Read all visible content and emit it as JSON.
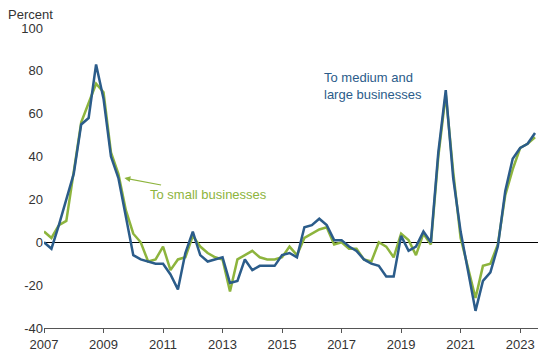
{
  "chart_data": {
    "type": "line",
    "y_label": "Percent",
    "x": [
      2007,
      2007.25,
      2007.5,
      2007.75,
      2008,
      2008.25,
      2008.5,
      2008.75,
      2009,
      2009.25,
      2009.5,
      2009.75,
      2010,
      2010.25,
      2010.5,
      2010.75,
      2011,
      2011.25,
      2011.5,
      2011.75,
      2012,
      2012.25,
      2012.5,
      2012.75,
      2013,
      2013.25,
      2013.5,
      2013.75,
      2014,
      2014.25,
      2014.5,
      2014.75,
      2015,
      2015.25,
      2015.5,
      2015.75,
      2016,
      2016.25,
      2016.5,
      2016.75,
      2017,
      2017.25,
      2017.5,
      2017.75,
      2018,
      2018.25,
      2018.5,
      2018.75,
      2019,
      2019.25,
      2019.5,
      2019.75,
      2020,
      2020.25,
      2020.5,
      2020.75,
      2021,
      2021.25,
      2021.5,
      2021.75,
      2022,
      2022.25,
      2022.5,
      2022.75,
      2023,
      2023.25,
      2023.5
    ],
    "series": [
      {
        "color": "#8DB43D",
        "values": [
          5,
          2,
          8,
          10,
          33,
          56,
          65,
          74,
          70,
          42,
          32,
          15,
          4,
          0,
          -9,
          -8,
          -2,
          -13,
          -8,
          -7,
          3,
          -2,
          -5,
          -7,
          -8,
          -23,
          -8,
          -6,
          -4,
          -7,
          -8,
          -8,
          -7,
          -2,
          -6,
          2,
          4,
          6,
          7,
          -1,
          0,
          -3,
          -3,
          -8,
          -9,
          0,
          -2,
          -7,
          4,
          1,
          -6,
          4,
          -1,
          40,
          69,
          33,
          2,
          -12,
          -26,
          -11,
          -10,
          -1,
          22,
          34,
          44,
          46,
          49
        ]
      },
      {
        "color": "#2B5C8A",
        "values": [
          0,
          -3,
          8,
          20,
          32,
          55,
          58,
          83,
          67,
          40,
          30,
          12,
          -6,
          -8,
          -9,
          -10,
          -10,
          -15,
          -22,
          -5,
          5,
          -6,
          -9,
          -8,
          -7,
          -19,
          -18,
          -8,
          -13,
          -11,
          -11,
          -11,
          -6,
          -5,
          -7,
          7,
          8,
          11,
          8,
          1,
          1,
          -2,
          -4,
          -8,
          -10,
          -11,
          -16,
          -16,
          3,
          -4,
          -2,
          5,
          0,
          42,
          71,
          30,
          5,
          -14,
          -32,
          -18,
          -14,
          -2,
          24,
          39,
          44,
          46,
          51
        ]
      }
    ],
    "annotations": [
      {
        "lines": [
          "To small businesses"
        ],
        "x": 2009.7,
        "y": 30,
        "color": "#8DB43D",
        "marker": "arrow"
      },
      {
        "lines": [
          "To medium and",
          "large businesses"
        ],
        "x": 2016.35,
        "y": 73,
        "color": "#2B5C8A"
      }
    ],
    "xlim": [
      2007,
      2023.6
    ],
    "xticks": [
      2007,
      2009,
      2011,
      2013,
      2015,
      2017,
      2019,
      2021,
      2023
    ],
    "ylim": [
      -40,
      100
    ],
    "yticks": [
      -40,
      -20,
      0,
      20,
      40,
      60,
      80,
      100
    ],
    "grid": false
  }
}
